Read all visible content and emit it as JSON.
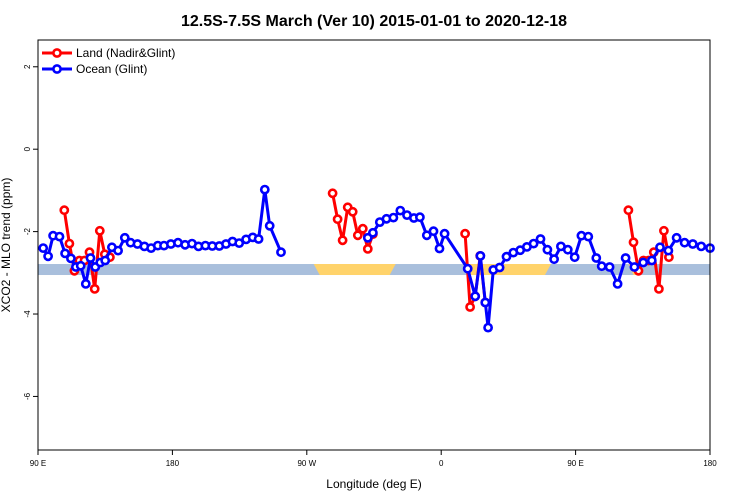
{
  "chart_data": {
    "type": "line",
    "title": "12.5S-7.5S March (Ver 10)   2015-01-01 to 2020-12-18",
    "xlabel": "Longitude (deg E)",
    "ylabel": "XCO2 - MLO trend (ppm)",
    "xlim": [
      90,
      450
    ],
    "ylim": [
      -7.3,
      2.65
    ],
    "x_ticks": [
      {
        "value": 90,
        "label": "90 E"
      },
      {
        "value": 162,
        "label": "180"
      },
      {
        "value": 234,
        "label": "90 W"
      },
      {
        "value": 306,
        "label": "0"
      },
      {
        "value": 378,
        "label": "90 E"
      },
      {
        "value": 450,
        "label": "180"
      }
    ],
    "y_ticks": [
      {
        "value": 2,
        "label": "2"
      },
      {
        "value": 0,
        "label": "0"
      },
      {
        "value": -2,
        "label": "-2"
      },
      {
        "value": -4,
        "label": "-4"
      },
      {
        "value": -6,
        "label": "-6"
      }
    ],
    "legend": {
      "position": "top-left",
      "entries": [
        {
          "label": "Land (Nadir&Glint)",
          "color": "#ff0000"
        },
        {
          "label": "Ocean (Glint)",
          "color": "#0000ff"
        }
      ]
    },
    "land_mask": {
      "y": -2.92,
      "ocean_color": "#a9bfdc",
      "land_color": "#ffd36b",
      "land_segments": [
        [
          237.7,
          281.6
        ],
        [
          318.8,
          364.8
        ],
        [
          406.3,
          414.2
        ]
      ]
    },
    "series": [
      {
        "name": "Land (Nadir&Glint)",
        "color": "#ff0000",
        "segments": [
          [
            [
              104.1,
              -1.48
            ],
            [
              106.8,
              -2.29
            ],
            [
              109.5,
              -2.95
            ],
            [
              112.2,
              -2.7
            ],
            [
              114.9,
              -2.7
            ],
            [
              117.6,
              -2.5
            ],
            [
              120.4,
              -3.39
            ],
            [
              123.1,
              -1.98
            ],
            [
              125.8,
              -2.55
            ],
            [
              128.5,
              -2.62
            ]
          ],
          [
            [
              247.8,
              -1.07
            ],
            [
              250.5,
              -1.7
            ],
            [
              253.2,
              -2.21
            ],
            [
              255.9,
              -1.41
            ],
            [
              258.6,
              -1.52
            ],
            [
              261.3,
              -2.09
            ],
            [
              264,
              -1.93
            ],
            [
              266.7,
              -2.42
            ],
            [
              269.4,
              -2.06
            ]
          ],
          [
            [
              318.8,
              -2.05
            ],
            [
              321.5,
              -3.83
            ],
            [
              324.2,
              -3.57
            ],
            [
              326.9,
              -2.59
            ],
            [
              329.6,
              -3.72
            ]
          ],
          [
            [
              406.3,
              -1.48
            ],
            [
              409,
              -2.26
            ],
            [
              411.7,
              -2.95
            ],
            [
              414.4,
              -2.7
            ],
            [
              417.1,
              -2.7
            ],
            [
              419.9,
              -2.5
            ],
            [
              422.6,
              -3.39
            ],
            [
              425.3,
              -1.98
            ],
            [
              428,
              -2.62
            ]
          ]
        ]
      },
      {
        "name": "Ocean (Glint)",
        "color": "#0000ff",
        "segments": [
          [
            [
              92.8,
              -2.4
            ],
            [
              95.4,
              -2.6
            ],
            [
              98.1,
              -2.1
            ],
            [
              101.5,
              -2.12
            ],
            [
              104.5,
              -2.53
            ],
            [
              107.6,
              -2.65
            ],
            [
              110.3,
              -2.86
            ],
            [
              112.9,
              -2.83
            ],
            [
              115.6,
              -3.27
            ],
            [
              118.1,
              -2.64
            ],
            [
              120.7,
              -2.86
            ],
            [
              123.4,
              -2.75
            ],
            [
              126,
              -2.7
            ],
            [
              129.6,
              -2.38
            ],
            [
              132.9,
              -2.46
            ],
            [
              136.5,
              -2.15
            ],
            [
              139.6,
              -2.27
            ],
            [
              143.3,
              -2.3
            ],
            [
              147,
              -2.36
            ],
            [
              150.6,
              -2.4
            ],
            [
              154.2,
              -2.34
            ],
            [
              157.5,
              -2.34
            ],
            [
              161.2,
              -2.3
            ],
            [
              165,
              -2.27
            ],
            [
              168.8,
              -2.32
            ],
            [
              172.5,
              -2.29
            ],
            [
              176,
              -2.36
            ],
            [
              179.7,
              -2.34
            ],
            [
              183.4,
              -2.35
            ],
            [
              187.1,
              -2.35
            ],
            [
              190.7,
              -2.3
            ],
            [
              194.2,
              -2.24
            ],
            [
              197.8,
              -2.28
            ],
            [
              201.5,
              -2.19
            ],
            [
              205,
              -2.14
            ],
            [
              208.2,
              -2.18
            ],
            [
              211.5,
              -0.98
            ],
            [
              214.1,
              -1.86
            ],
            [
              220.2,
              -2.5
            ]
          ],
          [
            [
              266.7,
              -2.15
            ],
            [
              269.4,
              -2.03
            ],
            [
              273.1,
              -1.77
            ],
            [
              276.7,
              -1.69
            ],
            [
              280.4,
              -1.66
            ],
            [
              284.1,
              -1.49
            ],
            [
              287.7,
              -1.6
            ],
            [
              291.4,
              -1.67
            ],
            [
              294.6,
              -1.65
            ],
            [
              298.3,
              -2.09
            ],
            [
              301.9,
              -1.99
            ],
            [
              305.1,
              -2.41
            ],
            [
              307.8,
              -2.05
            ],
            [
              320.2,
              -2.9
            ],
            [
              324.2,
              -3.57
            ],
            [
              327,
              -2.59
            ],
            [
              329.6,
              -3.72
            ],
            [
              331.1,
              -4.33
            ],
            [
              333.9,
              -2.93
            ],
            [
              337.3,
              -2.87
            ],
            [
              341,
              -2.61
            ],
            [
              344.6,
              -2.51
            ],
            [
              348.3,
              -2.45
            ],
            [
              351.9,
              -2.37
            ],
            [
              355.5,
              -2.29
            ],
            [
              359.2,
              -2.18
            ],
            [
              362.9,
              -2.44
            ],
            [
              366.5,
              -2.67
            ],
            [
              370.1,
              -2.36
            ],
            [
              373.8,
              -2.44
            ],
            [
              377.5,
              -2.62
            ],
            [
              381.1,
              -2.1
            ],
            [
              384.8,
              -2.12
            ],
            [
              389.1,
              -2.64
            ],
            [
              392,
              -2.84
            ],
            [
              396.2,
              -2.86
            ],
            [
              400.5,
              -3.27
            ],
            [
              404.8,
              -2.64
            ],
            [
              409.5,
              -2.86
            ],
            [
              414.2,
              -2.75
            ],
            [
              418.8,
              -2.7
            ],
            [
              423.2,
              -2.38
            ],
            [
              427.7,
              -2.46
            ],
            [
              432.1,
              -2.15
            ],
            [
              436.4,
              -2.27
            ],
            [
              440.8,
              -2.3
            ],
            [
              445.3,
              -2.36
            ],
            [
              450,
              -2.4
            ]
          ]
        ]
      }
    ]
  }
}
